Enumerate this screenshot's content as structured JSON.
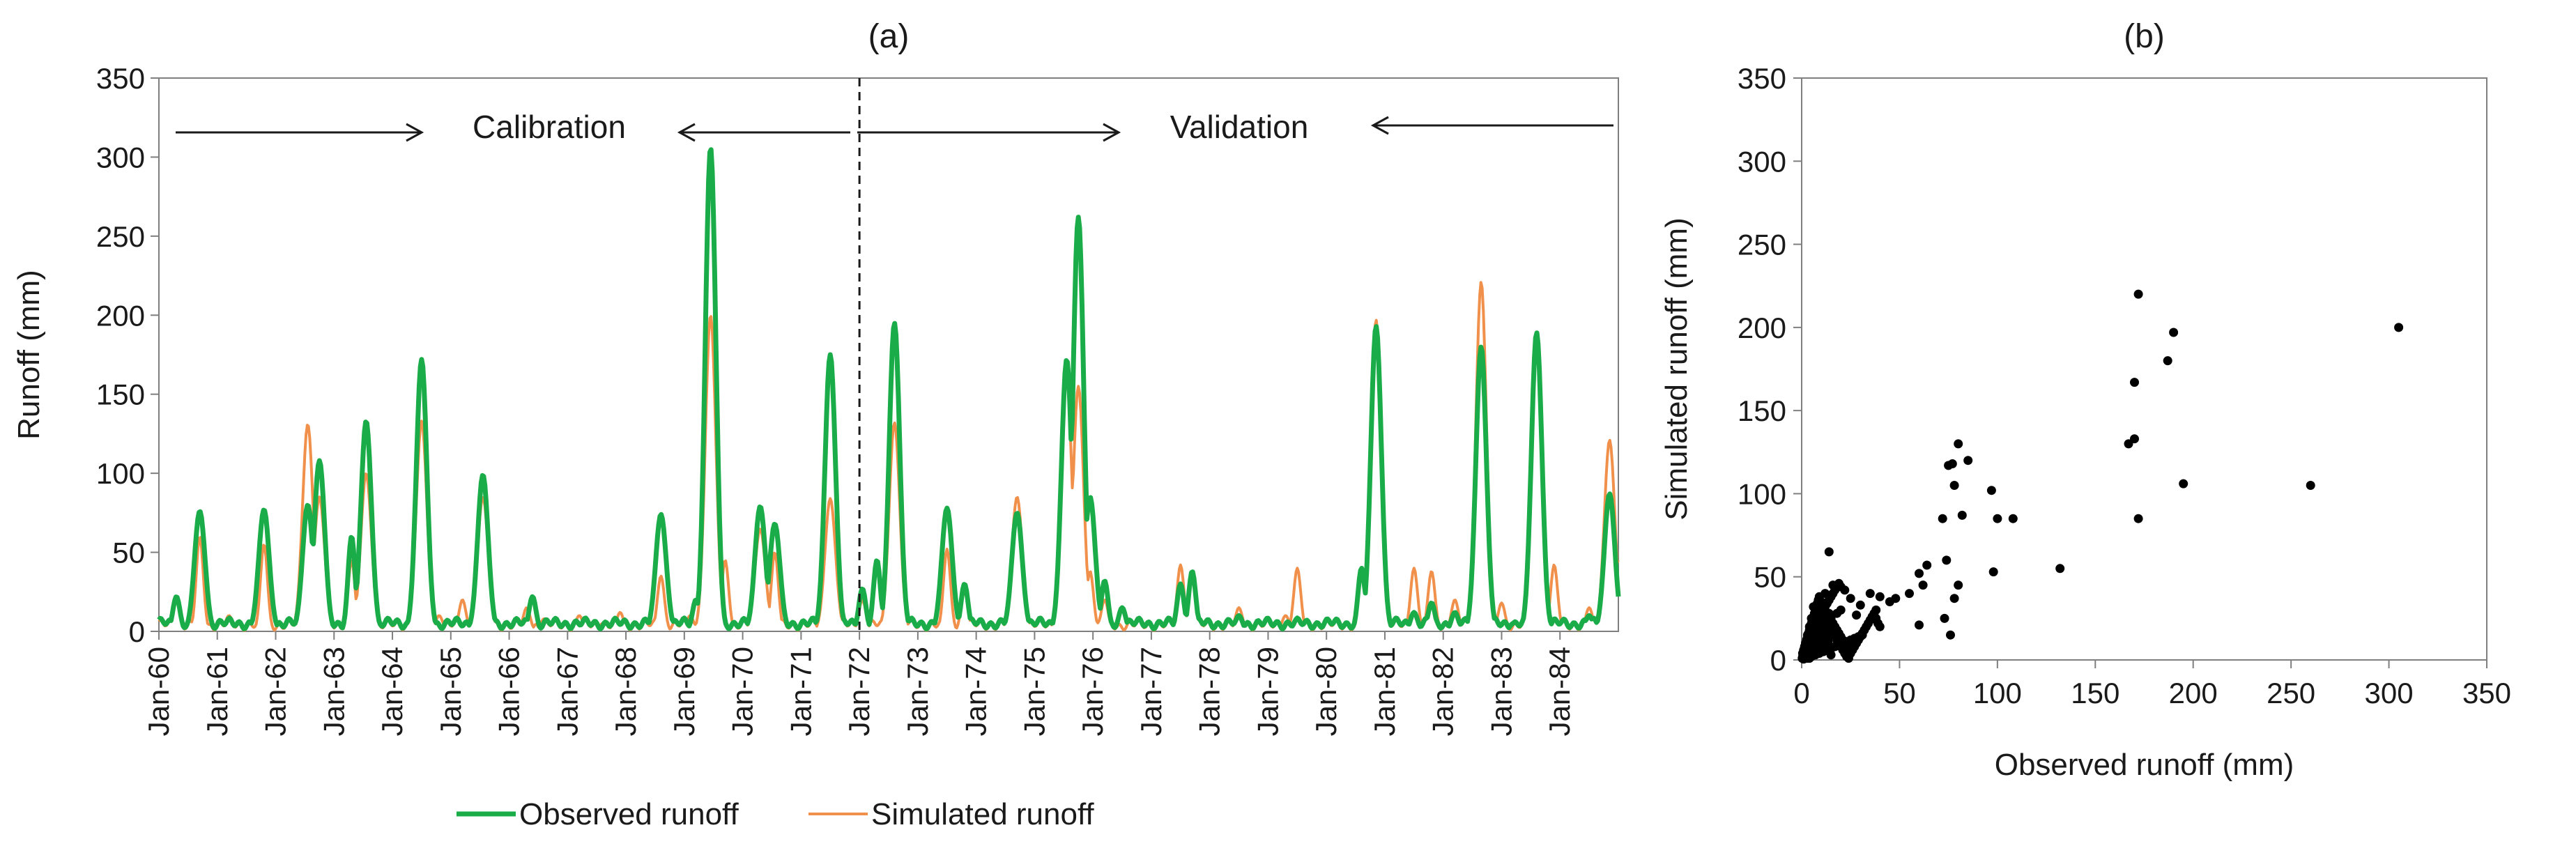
{
  "chart_data": [
    {
      "type": "line",
      "panel_label": "(a)",
      "title": "(a)",
      "xlabel": "",
      "ylabel": "Runoff  (mm)",
      "ylim": [
        0,
        350
      ],
      "yticks": [
        0,
        50,
        100,
        150,
        200,
        250,
        300,
        350
      ],
      "x_tick_labels": [
        "Jan-60",
        "Jan-61",
        "Jan-62",
        "Jan-63",
        "Jan-64",
        "Jan-65",
        "Jan-66",
        "Jan-67",
        "Jan-68",
        "Jan-69",
        "Jan-70",
        "Jan-71",
        "Jan-72",
        "Jan-73",
        "Jan-74",
        "Jan-75",
        "Jan-76",
        "Jan-77",
        "Jan-78",
        "Jan-79",
        "Jan-80",
        "Jan-81",
        "Jan-82",
        "Jan-83",
        "Jan-84"
      ],
      "x_start_year": 1960,
      "x_end_year": 1985,
      "annotations": {
        "calibration": "Calibration",
        "validation": "Validation",
        "split_year": 1972
      },
      "legend": [
        "Observed runoff",
        "Simulated runoff"
      ],
      "series": [
        {
          "name": "Observed runoff",
          "color": "#1aac48",
          "peaks": [
            [
              1960.3,
              22
            ],
            [
              1960.7,
              76
            ],
            [
              1961.8,
              77
            ],
            [
              1962.55,
              80
            ],
            [
              1962.75,
              108
            ],
            [
              1963.3,
              60
            ],
            [
              1963.55,
              133
            ],
            [
              1964.5,
              172
            ],
            [
              1965.55,
              99
            ],
            [
              1966.4,
              22
            ],
            [
              1968.6,
              74
            ],
            [
              1969.2,
              20
            ],
            [
              1969.45,
              306
            ],
            [
              1970.3,
              79
            ],
            [
              1970.55,
              68
            ],
            [
              1971.5,
              175
            ],
            [
              1972.05,
              27
            ],
            [
              1972.3,
              45
            ],
            [
              1972.6,
              195
            ],
            [
              1973.5,
              78
            ],
            [
              1973.8,
              30
            ],
            [
              1974.7,
              75
            ],
            [
              1975.55,
              172
            ],
            [
              1975.75,
              262
            ],
            [
              1975.95,
              85
            ],
            [
              1976.2,
              32
            ],
            [
              1976.5,
              15
            ],
            [
              1977.5,
              30
            ],
            [
              1977.7,
              38
            ],
            [
              1978.5,
              10
            ],
            [
              1979.5,
              8
            ],
            [
              1980.6,
              40
            ],
            [
              1980.85,
              193
            ],
            [
              1981.5,
              12
            ],
            [
              1981.8,
              18
            ],
            [
              1982.2,
              12
            ],
            [
              1982.65,
              180
            ],
            [
              1983.2,
              5
            ],
            [
              1983.6,
              189
            ],
            [
              1984.5,
              10
            ],
            [
              1984.85,
              87
            ],
            [
              1985.0,
              22
            ]
          ]
        },
        {
          "name": "Simulated runoff",
          "color": "#f0904a",
          "peaks": [
            [
              1960.3,
              20
            ],
            [
              1960.7,
              60
            ],
            [
              1961.2,
              10
            ],
            [
              1961.8,
              55
            ],
            [
              1962.55,
              131
            ],
            [
              1962.75,
              85
            ],
            [
              1963.3,
              45
            ],
            [
              1963.55,
              100
            ],
            [
              1964.5,
              133
            ],
            [
              1964.8,
              10
            ],
            [
              1965.2,
              20
            ],
            [
              1965.55,
              85
            ],
            [
              1966.3,
              15
            ],
            [
              1966.6,
              8
            ],
            [
              1967.2,
              10
            ],
            [
              1967.6,
              5
            ],
            [
              1967.9,
              12
            ],
            [
              1968.6,
              35
            ],
            [
              1969.1,
              10
            ],
            [
              1969.45,
              200
            ],
            [
              1969.7,
              45
            ],
            [
              1970.3,
              65
            ],
            [
              1970.55,
              50
            ],
            [
              1971.5,
              84
            ],
            [
              1972.05,
              20
            ],
            [
              1972.6,
              132
            ],
            [
              1973.5,
              52
            ],
            [
              1973.8,
              25
            ],
            [
              1974.7,
              85
            ],
            [
              1975.55,
              160
            ],
            [
              1975.75,
              155
            ],
            [
              1975.95,
              38
            ],
            [
              1976.2,
              20
            ],
            [
              1977.5,
              42
            ],
            [
              1977.7,
              35
            ],
            [
              1978.5,
              15
            ],
            [
              1979.3,
              10
            ],
            [
              1979.5,
              40
            ],
            [
              1980.6,
              35
            ],
            [
              1980.85,
              197
            ],
            [
              1981.5,
              40
            ],
            [
              1981.8,
              38
            ],
            [
              1982.2,
              20
            ],
            [
              1982.65,
              221
            ],
            [
              1983.0,
              18
            ],
            [
              1983.6,
              185
            ],
            [
              1983.9,
              42
            ],
            [
              1984.5,
              15
            ],
            [
              1984.85,
              121
            ],
            [
              1985.0,
              45
            ]
          ]
        }
      ]
    },
    {
      "type": "scatter",
      "panel_label": "(b)",
      "title": "(b)",
      "xlabel": "Observed runoff  (mm)",
      "ylabel": "Simulated runoff  (mm)",
      "xlim": [
        0,
        350
      ],
      "ylim": [
        0,
        350
      ],
      "xticks": [
        0,
        50,
        100,
        150,
        200,
        250,
        300,
        350
      ],
      "yticks": [
        0,
        50,
        100,
        150,
        200,
        250,
        300,
        350
      ],
      "points": [
        [
          305,
          200
        ],
        [
          260,
          105
        ],
        [
          172,
          220
        ],
        [
          190,
          197
        ],
        [
          170,
          167
        ],
        [
          187,
          180
        ],
        [
          195,
          106
        ],
        [
          170,
          133
        ],
        [
          167,
          130
        ],
        [
          172,
          85
        ],
        [
          132,
          55
        ],
        [
          100,
          85
        ],
        [
          97,
          102
        ],
        [
          108,
          85
        ],
        [
          98,
          53
        ],
        [
          80,
          130
        ],
        [
          77,
          118
        ],
        [
          85,
          120
        ],
        [
          75,
          117
        ],
        [
          78,
          105
        ],
        [
          82,
          87
        ],
        [
          74,
          60
        ],
        [
          72,
          85
        ],
        [
          80,
          45
        ],
        [
          78,
          37
        ],
        [
          73,
          25
        ],
        [
          76,
          15
        ],
        [
          64,
          57
        ],
        [
          60,
          52
        ],
        [
          60,
          21
        ],
        [
          62,
          45
        ],
        [
          55,
          40
        ],
        [
          48,
          37
        ],
        [
          45,
          35
        ],
        [
          40,
          38
        ],
        [
          38,
          30
        ],
        [
          35,
          40
        ],
        [
          30,
          33
        ],
        [
          28,
          27
        ],
        [
          25,
          37
        ],
        [
          22,
          42
        ],
        [
          20,
          30
        ],
        [
          18,
          28
        ],
        [
          16,
          45
        ],
        [
          14,
          65
        ],
        [
          12,
          40
        ],
        [
          10,
          35
        ],
        [
          8,
          28
        ],
        [
          6,
          32
        ],
        [
          5,
          25
        ],
        [
          4,
          20
        ],
        [
          3,
          15
        ],
        [
          2,
          10
        ],
        [
          1,
          5
        ],
        [
          0.5,
          2
        ],
        [
          0.3,
          1
        ],
        [
          1,
          2
        ],
        [
          2,
          4
        ],
        [
          3,
          6
        ],
        [
          4,
          8
        ],
        [
          5,
          10
        ],
        [
          6,
          12
        ],
        [
          7,
          14
        ],
        [
          8,
          16
        ],
        [
          9,
          18
        ],
        [
          10,
          20
        ],
        [
          11,
          22
        ],
        [
          12,
          24
        ],
        [
          13,
          26
        ],
        [
          14,
          28
        ],
        [
          15,
          25
        ],
        [
          16,
          22
        ],
        [
          17,
          20
        ],
        [
          18,
          18
        ],
        [
          19,
          16
        ],
        [
          20,
          14
        ],
        [
          21,
          12
        ],
        [
          22,
          10
        ],
        [
          23,
          8
        ],
        [
          24,
          6
        ],
        [
          25,
          4
        ],
        [
          26,
          6
        ],
        [
          27,
          8
        ],
        [
          28,
          10
        ],
        [
          29,
          12
        ],
        [
          30,
          14
        ],
        [
          31,
          16
        ],
        [
          32,
          18
        ],
        [
          33,
          20
        ],
        [
          34,
          22
        ],
        [
          35,
          24
        ],
        [
          36,
          26
        ],
        [
          37,
          28
        ],
        [
          38,
          25
        ],
        [
          39,
          22
        ],
        [
          40,
          20
        ],
        [
          5,
          5
        ],
        [
          6,
          6
        ],
        [
          7,
          7
        ],
        [
          8,
          8
        ],
        [
          9,
          9
        ],
        [
          10,
          10
        ],
        [
          11,
          11
        ],
        [
          12,
          12
        ],
        [
          13,
          13
        ],
        [
          14,
          14
        ],
        [
          15,
          15
        ],
        [
          3,
          3
        ],
        [
          2,
          2
        ],
        [
          4,
          4
        ],
        [
          1,
          1
        ],
        [
          2,
          8
        ],
        [
          3,
          12
        ],
        [
          4,
          16
        ],
        [
          5,
          18
        ],
        [
          6,
          20
        ],
        [
          7,
          22
        ],
        [
          8,
          24
        ],
        [
          9,
          26
        ],
        [
          10,
          28
        ],
        [
          11,
          30
        ],
        [
          12,
          32
        ],
        [
          13,
          34
        ],
        [
          14,
          36
        ],
        [
          15,
          38
        ],
        [
          16,
          40
        ],
        [
          17,
          42
        ],
        [
          18,
          44
        ],
        [
          19,
          46
        ],
        [
          20,
          44
        ],
        [
          1,
          3
        ],
        [
          2,
          6
        ],
        [
          3,
          9
        ],
        [
          4,
          12
        ],
        [
          5,
          15
        ],
        [
          6,
          18
        ],
        [
          7,
          21
        ],
        [
          8,
          12
        ],
        [
          9,
          15
        ],
        [
          10,
          18
        ],
        [
          11,
          21
        ],
        [
          12,
          18
        ],
        [
          13,
          16
        ],
        [
          14,
          20
        ],
        [
          15,
          22
        ],
        [
          16,
          18
        ],
        [
          17,
          15
        ],
        [
          18,
          12
        ],
        [
          19,
          10
        ],
        [
          20,
          8
        ],
        [
          21,
          6
        ],
        [
          22,
          4
        ],
        [
          23,
          2
        ],
        [
          24,
          1
        ],
        [
          3,
          1
        ],
        [
          5,
          2
        ],
        [
          7,
          3
        ],
        [
          9,
          4
        ],
        [
          11,
          5
        ],
        [
          13,
          6
        ],
        [
          15,
          7
        ],
        [
          17,
          8
        ],
        [
          19,
          9
        ],
        [
          21,
          10
        ],
        [
          23,
          11
        ],
        [
          25,
          12
        ],
        [
          27,
          13
        ],
        [
          29,
          14
        ],
        [
          31,
          15
        ],
        [
          1,
          0.5
        ],
        [
          2,
          1
        ],
        [
          3,
          2
        ],
        [
          4,
          1
        ],
        [
          5,
          3
        ],
        [
          6,
          4
        ],
        [
          7,
          5
        ],
        [
          8,
          6
        ],
        [
          9,
          7
        ],
        [
          10,
          8
        ],
        [
          11,
          9
        ],
        [
          12,
          10
        ],
        [
          0.8,
          1.5
        ],
        [
          1.5,
          2.5
        ],
        [
          2.5,
          3.5
        ],
        [
          3.5,
          4.5
        ],
        [
          4.5,
          5.5
        ],
        [
          5.5,
          6.5
        ],
        [
          6.5,
          7.5
        ],
        [
          7.5,
          8.5
        ],
        [
          8.5,
          9.5
        ],
        [
          9.5,
          10.5
        ],
        [
          10.5,
          11.5
        ],
        [
          11.5,
          12.5
        ],
        [
          12.5,
          13.5
        ],
        [
          13.5,
          14.5
        ],
        [
          14.5,
          15.5
        ],
        [
          0.5,
          4
        ],
        [
          1,
          6
        ],
        [
          1.5,
          8
        ],
        [
          2,
          10
        ],
        [
          2.5,
          12
        ],
        [
          3,
          14
        ],
        [
          3.5,
          16
        ],
        [
          4,
          18
        ],
        [
          4.5,
          20
        ],
        [
          5,
          22
        ],
        [
          5.5,
          24
        ],
        [
          6,
          26
        ],
        [
          6.5,
          28
        ],
        [
          7,
          30
        ],
        [
          7.5,
          32
        ],
        [
          8,
          34
        ],
        [
          8.5,
          36
        ],
        [
          9,
          38
        ],
        [
          9.5,
          35
        ],
        [
          10,
          32
        ],
        [
          10.5,
          29
        ],
        [
          11,
          26
        ],
        [
          11.5,
          23
        ],
        [
          12,
          20
        ],
        [
          12.5,
          17
        ],
        [
          13,
          14
        ],
        [
          13.5,
          11
        ],
        [
          14,
          8
        ],
        [
          14.5,
          5
        ],
        [
          15,
          3
        ]
      ]
    }
  ]
}
